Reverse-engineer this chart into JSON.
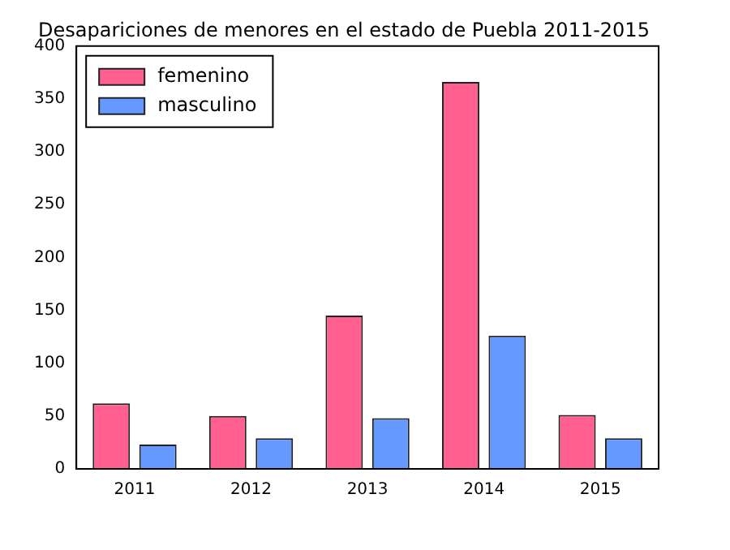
{
  "chart_data": {
    "type": "bar",
    "title": "Desapariciones de menores en el estado de Puebla 2011-2015",
    "categories": [
      "2011",
      "2012",
      "2013",
      "2014",
      "2015"
    ],
    "series": [
      {
        "name": "femenino",
        "color": "#ff6090",
        "values": [
          62,
          50,
          145,
          366,
          51
        ]
      },
      {
        "name": "masculino",
        "color": "#6699ff",
        "values": [
          23,
          29,
          48,
          126,
          29
        ]
      }
    ],
    "ylim": [
      0,
      400
    ],
    "yticks": [
      0,
      50,
      100,
      150,
      200,
      250,
      300,
      350,
      400
    ],
    "grid": false,
    "legend": "top left"
  }
}
